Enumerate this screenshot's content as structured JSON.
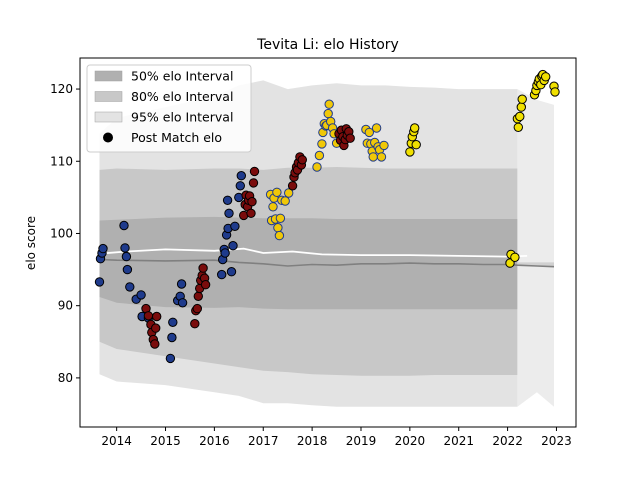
{
  "chart_data": {
    "type": "scatter",
    "title": "Tevita Li: elo History",
    "xlabel": "",
    "ylabel": "elo score",
    "xlim": [
      2013.25,
      2023.4
    ],
    "ylim": [
      73.2,
      124.3
    ],
    "x_ticks": [
      "2014",
      "2015",
      "2016",
      "2017",
      "2018",
      "2019",
      "2020",
      "2021",
      "2022",
      "2023"
    ],
    "y_ticks": [
      "80",
      "90",
      "100",
      "110",
      "120"
    ],
    "legend": {
      "placement": "top-left",
      "entries": [
        {
          "label": "50% elo Interval",
          "color": "#b0b0b0"
        },
        {
          "label": "80% elo Interval",
          "color": "#c8c8c8"
        },
        {
          "label": "95% elo Interval",
          "color": "#e3e3e3"
        },
        {
          "label": "Post Match elo",
          "color": "#000000"
        }
      ]
    },
    "bands": {
      "x": [
        2013.65,
        2014.0,
        2015.0,
        2016.0,
        2016.5,
        2017.0,
        2017.5,
        2018.0,
        2018.5,
        2019.0,
        2019.5,
        2020.0,
        2020.5,
        2021.0,
        2021.5,
        2022.0,
        2022.2
      ],
      "mean": [
        96.4,
        96.3,
        96.2,
        96.3,
        96.0,
        95.8,
        95.5,
        95.7,
        95.6,
        95.8,
        95.8,
        95.9,
        95.8,
        95.8,
        95.7,
        95.7,
        95.6
      ],
      "band50": {
        "low": [
          91.2,
          90.4,
          89.8,
          89.7,
          89.8,
          89.6,
          89.5,
          89.5,
          89.5,
          89.5,
          89.5,
          89.5,
          89.5,
          89.5,
          89.5,
          89.5,
          89.5
        ],
        "high": [
          101.8,
          101.9,
          102.2,
          102.3,
          102.2,
          102.1,
          102.1,
          102.1,
          102.0,
          102.0,
          102.0,
          102.0,
          102.0,
          102.0,
          102.0,
          102.0,
          102.0
        ]
      },
      "band80": {
        "low": [
          85.0,
          84.0,
          83.0,
          82.0,
          81.5,
          81.0,
          80.8,
          80.5,
          80.4,
          80.3,
          80.3,
          80.3,
          80.4,
          80.4,
          80.4,
          80.4,
          80.4
        ],
        "high": [
          108.8,
          109.0,
          108.8,
          109.0,
          109.0,
          108.8,
          109.1,
          109.1,
          109.2,
          109.1,
          109.0,
          109.0,
          109.0,
          109.0,
          109.0,
          109.0,
          109.0
        ]
      },
      "band95": {
        "low": [
          80.5,
          79.5,
          79.0,
          78.0,
          77.5,
          76.5,
          76.5,
          76.2,
          76.0,
          76.0,
          76.0,
          76.0,
          76.0,
          76.0,
          76.0,
          76.0,
          76.0
        ],
        "high": [
          113.8,
          116.0,
          117.5,
          119.0,
          120.5,
          121.2,
          120.0,
          120.5,
          120.8,
          120.5,
          120.5,
          120.3,
          120.2,
          120.0,
          120.0,
          120.0,
          120.0
        ]
      }
    },
    "mean_post": {
      "x": [
        2022.2,
        2022.6,
        2022.95
      ],
      "mean": [
        95.6,
        95.5,
        95.4
      ],
      "band50_low": [
        96.0,
        96.0,
        96.0
      ],
      "band95": {
        "low": [
          76.0,
          78.0,
          76.0
        ],
        "high": [
          120.0,
          118.5,
          117.8
        ]
      },
      "band80_tails": [
        [
          109.0,
          108.5,
          107.5
        ],
        [
          80.4,
          81.0,
          80.8
        ]
      ]
    },
    "white_line": {
      "x": [
        2013.65,
        2014.2,
        2015.0,
        2016.0,
        2016.6,
        2017.0,
        2017.6,
        2018.2,
        2019.0,
        2020.0,
        2021.0,
        2022.0,
        2022.4
      ],
      "y": [
        97.2,
        97.5,
        97.8,
        97.6,
        97.9,
        97.3,
        97.5,
        97.1,
        97.0,
        97.0,
        96.9,
        96.8,
        96.9
      ]
    },
    "series": [
      {
        "era": "2013-2014",
        "fill": "#1f3b8c",
        "edge": "#000000",
        "points": [
          [
            2013.65,
            93.3
          ],
          [
            2013.67,
            96.5
          ],
          [
            2013.7,
            97.3
          ],
          [
            2013.72,
            97.9
          ],
          [
            2014.15,
            101.1
          ],
          [
            2014.17,
            98.0
          ],
          [
            2014.2,
            96.8
          ],
          [
            2014.22,
            95.0
          ],
          [
            2014.27,
            92.6
          ],
          [
            2014.4,
            90.9
          ],
          [
            2014.5,
            91.5
          ],
          [
            2014.52,
            88.5
          ],
          [
            2014.65,
            88.3
          ]
        ]
      },
      {
        "era": "2014-2015",
        "fill": "#7a0c0c",
        "edge": "#000000",
        "points": [
          [
            2014.6,
            89.6
          ],
          [
            2014.65,
            88.6
          ],
          [
            2014.7,
            87.4
          ],
          [
            2014.72,
            86.3
          ],
          [
            2014.75,
            85.3
          ],
          [
            2014.78,
            84.7
          ],
          [
            2014.8,
            86.9
          ],
          [
            2014.82,
            88.5
          ]
        ]
      },
      {
        "era": "2015",
        "fill": "#1f3b8c",
        "edge": "#000000",
        "points": [
          [
            2015.1,
            82.7
          ],
          [
            2015.13,
            85.6
          ],
          [
            2015.15,
            87.7
          ],
          [
            2015.25,
            90.7
          ],
          [
            2015.3,
            91.3
          ],
          [
            2015.33,
            93.0
          ],
          [
            2015.35,
            90.4
          ]
        ]
      },
      {
        "era": "2015-2016",
        "fill": "#7a0c0c",
        "edge": "#000000",
        "points": [
          [
            2015.6,
            87.5
          ],
          [
            2015.62,
            89.3
          ],
          [
            2015.65,
            89.6
          ],
          [
            2015.67,
            91.3
          ],
          [
            2015.7,
            92.4
          ],
          [
            2015.72,
            93.5
          ],
          [
            2015.75,
            94.2
          ],
          [
            2015.77,
            95.2
          ],
          [
            2015.8,
            93.8
          ],
          [
            2015.82,
            92.9
          ]
        ]
      },
      {
        "era": "2016",
        "fill": "#1f3b8c",
        "edge": "#000000",
        "points": [
          [
            2016.15,
            94.3
          ],
          [
            2016.17,
            96.4
          ],
          [
            2016.2,
            97.8
          ],
          [
            2016.22,
            97.3
          ],
          [
            2016.25,
            99.8
          ],
          [
            2016.28,
            100.7
          ],
          [
            2016.3,
            102.8
          ],
          [
            2016.27,
            104.6
          ],
          [
            2016.35,
            94.7
          ],
          [
            2016.38,
            98.3
          ],
          [
            2016.42,
            101.0
          ],
          [
            2016.5,
            105.0
          ],
          [
            2016.53,
            106.6
          ],
          [
            2016.55,
            108.0
          ]
        ]
      },
      {
        "era": "2016-2017",
        "fill": "#7a0c0c",
        "edge": "#000000",
        "points": [
          [
            2016.6,
            102.5
          ],
          [
            2016.63,
            104.0
          ],
          [
            2016.65,
            105.3
          ],
          [
            2016.68,
            103.7
          ],
          [
            2016.7,
            104.6
          ],
          [
            2016.72,
            105.2
          ],
          [
            2016.75,
            102.8
          ],
          [
            2016.77,
            104.4
          ],
          [
            2016.8,
            107.0
          ],
          [
            2016.82,
            108.6
          ]
        ]
      },
      {
        "era": "2017",
        "fill": "#f0c808",
        "edge": "#1f3b8c",
        "points": [
          [
            2017.15,
            105.4
          ],
          [
            2017.17,
            101.8
          ],
          [
            2017.2,
            103.7
          ],
          [
            2017.22,
            104.9
          ],
          [
            2017.25,
            102.0
          ],
          [
            2017.28,
            105.7
          ],
          [
            2017.3,
            100.8
          ],
          [
            2017.33,
            99.7
          ],
          [
            2017.35,
            102.1
          ],
          [
            2017.38,
            104.6
          ],
          [
            2017.45,
            104.5
          ],
          [
            2017.52,
            105.6
          ]
        ]
      },
      {
        "era": "2017-2018",
        "fill": "#7a0c0c",
        "edge": "#000000",
        "points": [
          [
            2017.6,
            106.6
          ],
          [
            2017.63,
            107.8
          ],
          [
            2017.65,
            108.4
          ],
          [
            2017.68,
            109.2
          ],
          [
            2017.7,
            108.8
          ],
          [
            2017.72,
            109.8
          ],
          [
            2017.75,
            110.6
          ],
          [
            2017.78,
            109.5
          ],
          [
            2017.8,
            110.2
          ]
        ]
      },
      {
        "era": "2018",
        "fill": "#f0c808",
        "edge": "#1f3b8c",
        "points": [
          [
            2018.1,
            109.2
          ],
          [
            2018.15,
            110.8
          ],
          [
            2018.2,
            112.4
          ],
          [
            2018.22,
            114.0
          ],
          [
            2018.25,
            115.2
          ],
          [
            2018.28,
            114.9
          ],
          [
            2018.3,
            115.0
          ],
          [
            2018.33,
            116.6
          ],
          [
            2018.35,
            117.9
          ],
          [
            2018.38,
            115.5
          ],
          [
            2018.42,
            114.6
          ],
          [
            2018.45,
            113.8
          ],
          [
            2018.5,
            112.5
          ]
        ]
      },
      {
        "era": "2018-2019",
        "fill": "#7a0c0c",
        "edge": "#000000",
        "points": [
          [
            2018.55,
            113.8
          ],
          [
            2018.58,
            112.9
          ],
          [
            2018.6,
            114.3
          ],
          [
            2018.63,
            113.4
          ],
          [
            2018.65,
            112.2
          ],
          [
            2018.68,
            113.0
          ],
          [
            2018.7,
            114.5
          ],
          [
            2018.72,
            113.6
          ],
          [
            2018.75,
            114.1
          ],
          [
            2018.78,
            113.2
          ]
        ]
      },
      {
        "era": "2019",
        "fill": "#f0c808",
        "edge": "#1f3b8c",
        "points": [
          [
            2019.1,
            114.4
          ],
          [
            2019.13,
            112.5
          ],
          [
            2019.17,
            114.0
          ],
          [
            2019.2,
            112.4
          ],
          [
            2019.23,
            111.4
          ],
          [
            2019.25,
            110.6
          ],
          [
            2019.28,
            112.6
          ],
          [
            2019.32,
            114.6
          ],
          [
            2019.35,
            112.0
          ],
          [
            2019.38,
            111.6
          ],
          [
            2019.42,
            110.6
          ],
          [
            2019.47,
            112.2
          ]
        ]
      },
      {
        "era": "2020",
        "fill": "#f0e000",
        "edge": "#000000",
        "points": [
          [
            2020.0,
            111.3
          ],
          [
            2020.03,
            112.5
          ],
          [
            2020.05,
            113.4
          ],
          [
            2020.08,
            114.1
          ],
          [
            2020.1,
            114.6
          ],
          [
            2020.13,
            112.3
          ]
        ]
      },
      {
        "era": "2022",
        "fill": "#f0e000",
        "edge": "#000000",
        "points": [
          [
            2022.05,
            95.9
          ],
          [
            2022.07,
            97.1
          ],
          [
            2022.15,
            96.7
          ],
          [
            2022.2,
            115.9
          ],
          [
            2022.22,
            114.7
          ],
          [
            2022.25,
            116.2
          ],
          [
            2022.28,
            117.5
          ],
          [
            2022.3,
            118.6
          ],
          [
            2022.55,
            119.2
          ],
          [
            2022.58,
            119.8
          ],
          [
            2022.6,
            120.5
          ],
          [
            2022.63,
            121.0
          ],
          [
            2022.65,
            121.4
          ],
          [
            2022.68,
            120.6
          ],
          [
            2022.7,
            121.8
          ],
          [
            2022.72,
            122.0
          ],
          [
            2022.75,
            121.2
          ],
          [
            2022.78,
            121.7
          ],
          [
            2022.95,
            120.4
          ],
          [
            2022.97,
            119.6
          ]
        ]
      }
    ]
  }
}
